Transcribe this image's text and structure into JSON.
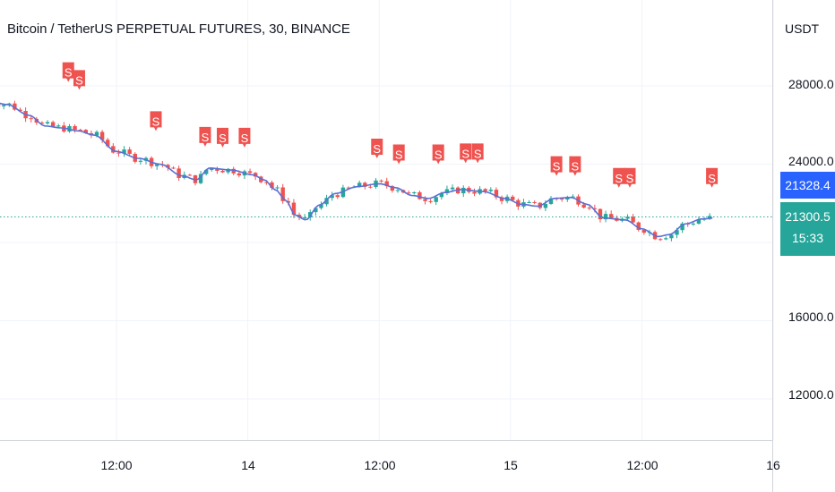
{
  "header": {
    "title": "Bitcoin / TetherUS PERPETUAL FUTURES, 30, BINANCE",
    "currency": "USDT"
  },
  "price_labels": {
    "reference": "21328.4",
    "last": "21300.5",
    "countdown": "15:33"
  },
  "colors": {
    "up": "#26a69a",
    "down": "#ef5350",
    "ma_line": "#5b6fd6",
    "signal": "#ef5350",
    "grid": "#f0f3fa",
    "reference_label": "#2962ff",
    "last_price_line": "#26a69a"
  },
  "chart_data": {
    "type": "candlestick",
    "y_ticks": [
      "28000.0",
      "24000.0",
      "16000.0",
      "12000.0"
    ],
    "y_tick_values": [
      28000,
      24000,
      16000,
      12000
    ],
    "x_ticks": [
      "12:00",
      "14",
      "12:00",
      "15",
      "12:00",
      "16"
    ],
    "x_tick_hours": [
      12,
      24,
      36,
      48,
      60,
      72
    ],
    "ylim": [
      10400,
      30800
    ],
    "xlim_hours": [
      0.2,
      74.5
    ],
    "last_price": 21300.5,
    "reference_price": 21328.4,
    "grid": true,
    "ma_anchors": [
      [
        0.2,
        27250
      ],
      [
        2,
        27050
      ],
      [
        4,
        26500
      ],
      [
        5.5,
        25950
      ],
      [
        7,
        25850
      ],
      [
        8.5,
        25700
      ],
      [
        10,
        25480
      ],
      [
        12,
        24650
      ],
      [
        14,
        24300
      ],
      [
        16,
        24000
      ],
      [
        18,
        23400
      ],
      [
        19.3,
        23200
      ],
      [
        20.5,
        23800
      ],
      [
        22.5,
        23700
      ],
      [
        24.5,
        23450
      ],
      [
        25.5,
        23200
      ],
      [
        26.5,
        22700
      ],
      [
        27.5,
        22150
      ],
      [
        28.3,
        21400
      ],
      [
        29.3,
        21150
      ],
      [
        30.5,
        21900
      ],
      [
        32,
        22500
      ],
      [
        34,
        22850
      ],
      [
        36,
        23000
      ],
      [
        37.5,
        22800
      ],
      [
        39,
        22400
      ],
      [
        40.5,
        22250
      ],
      [
        42,
        22550
      ],
      [
        43.5,
        22700
      ],
      [
        45.5,
        22600
      ],
      [
        47.5,
        22250
      ],
      [
        49,
        21950
      ],
      [
        50.5,
        21850
      ],
      [
        52,
        22250
      ],
      [
        53.5,
        22300
      ],
      [
        55,
        21950
      ],
      [
        56.5,
        21250
      ],
      [
        58.5,
        21150
      ],
      [
        60,
        20700
      ],
      [
        61.5,
        20300
      ],
      [
        62.5,
        20400
      ],
      [
        64,
        20950
      ],
      [
        65.5,
        21200
      ],
      [
        66.6,
        21250
      ]
    ],
    "signals": [
      {
        "label": "S",
        "x_hour": 7.6,
        "price": 28200
      },
      {
        "label": "S",
        "x_hour": 8.6,
        "price": 27800
      },
      {
        "label": "S",
        "x_hour": 15.6,
        "price": 25700
      },
      {
        "label": "S",
        "x_hour": 20.1,
        "price": 24900
      },
      {
        "label": "S",
        "x_hour": 21.7,
        "price": 24850
      },
      {
        "label": "S",
        "x_hour": 23.7,
        "price": 24850
      },
      {
        "label": "S",
        "x_hour": 35.8,
        "price": 24300
      },
      {
        "label": "S",
        "x_hour": 37.8,
        "price": 24000
      },
      {
        "label": "S",
        "x_hour": 41.4,
        "price": 24000
      },
      {
        "label": "S",
        "x_hour": 43.9,
        "price": 24050
      },
      {
        "label": "S",
        "x_hour": 45.0,
        "price": 24050
      },
      {
        "label": "S",
        "x_hour": 52.2,
        "price": 23400
      },
      {
        "label": "S",
        "x_hour": 53.9,
        "price": 23400
      },
      {
        "label": "S",
        "x_hour": 57.9,
        "price": 22800
      },
      {
        "label": "S",
        "x_hour": 58.9,
        "price": 22800
      },
      {
        "label": "S",
        "x_hour": 66.4,
        "price": 22800
      }
    ]
  }
}
